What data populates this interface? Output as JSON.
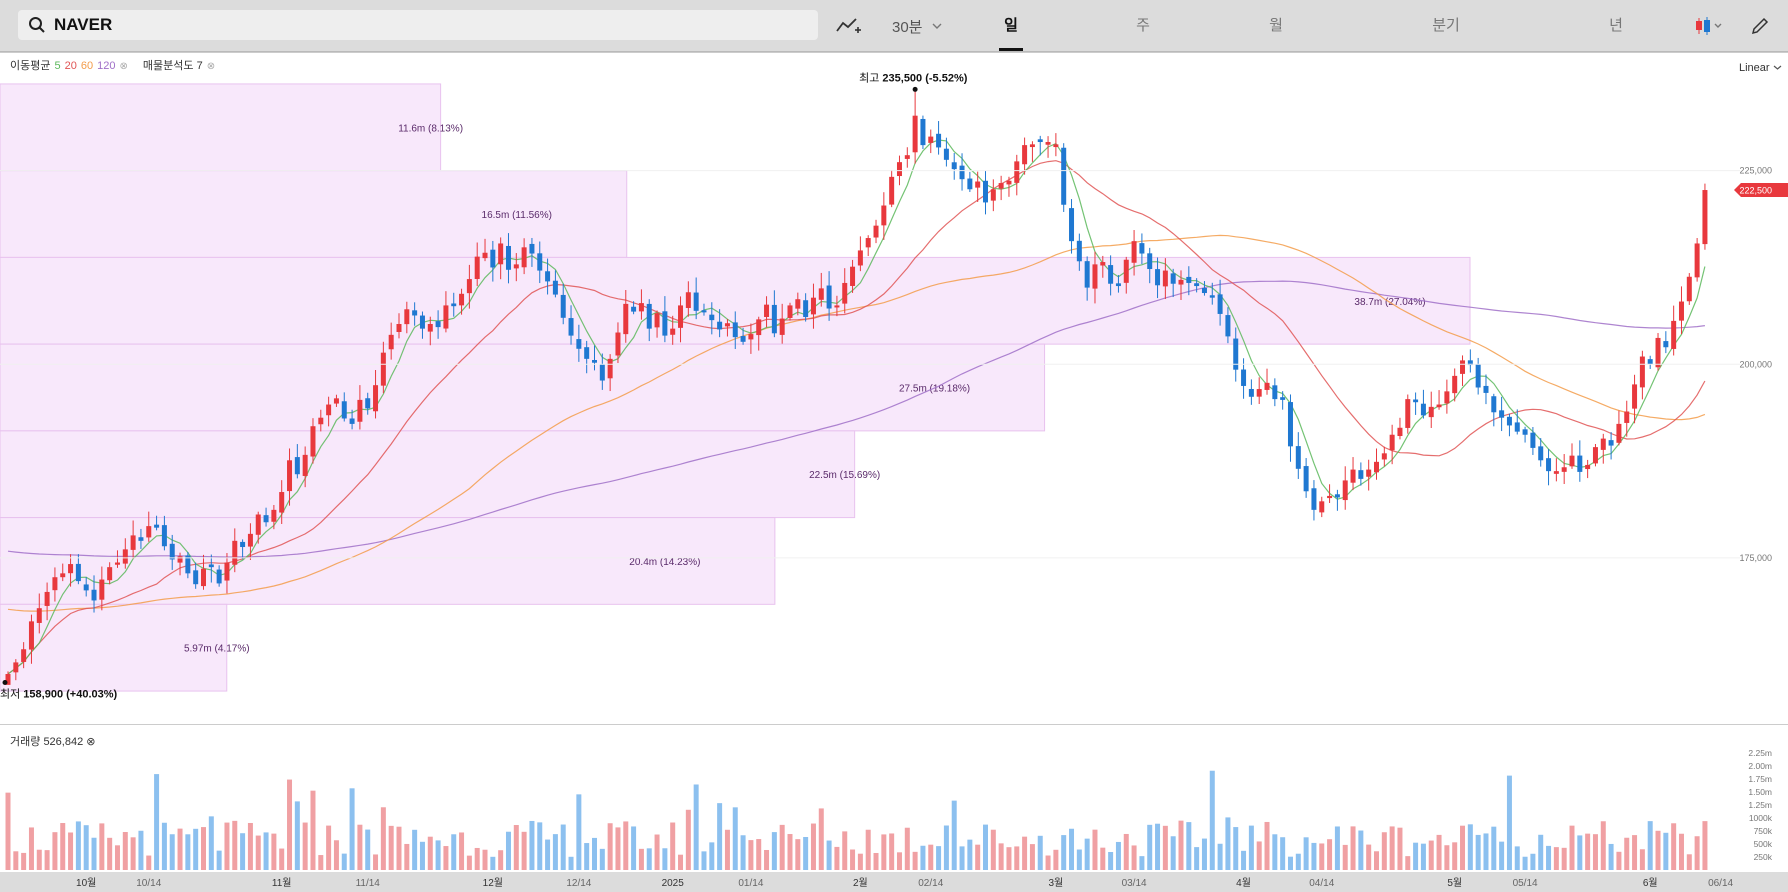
{
  "header": {
    "symbol": "NAVER",
    "interval_label": "30분",
    "periods": [
      "일",
      "주",
      "월",
      "분기",
      "년"
    ],
    "active_period": "일"
  },
  "indicators": {
    "ma_label": "이동평균",
    "ma_periods": [
      "5",
      "20",
      "60",
      "120"
    ],
    "ma_colors": [
      "#5cb85c",
      "#e05555",
      "#f39c4a",
      "#a070c8"
    ],
    "volume_profile_label": "매물분석도 7",
    "volume_label": "거래량",
    "volume_value": "526,842"
  },
  "scale_mode": "Linear",
  "colors": {
    "up": "#e8383d",
    "down": "#1f78d1",
    "up_volume": "#f0a0a3",
    "down_volume": "#8cc0ef",
    "profile_fill": "#f8e8fb",
    "profile_stroke": "#e8c2ee",
    "last_price_bg": "#e8383d"
  },
  "chart_data": {
    "type": "candlestick",
    "title": "NAVER",
    "ylim": [
      156000,
      238000
    ],
    "price_ticks": [
      "225,000",
      "200,000",
      "175,000"
    ],
    "price_tick_values": [
      225000,
      200000,
      175000
    ],
    "last_price": "222,500",
    "last_price_value": 222500,
    "max_annotation": {
      "prefix": "최고",
      "value": "235,500 (-5.52%)",
      "price": 235500,
      "day": 116
    },
    "min_annotation": {
      "prefix": "최저",
      "value": "158,900 (+40.03%)",
      "price": 158900,
      "day": 0
    },
    "x_tick_labels": [
      "10월",
      "10/14",
      "11월",
      "11/14",
      "12월",
      "12/14",
      "2025",
      "01/14",
      "2월",
      "02/14",
      "3월",
      "03/14",
      "4월",
      "04/14",
      "5월",
      "05/14",
      "6월",
      "06/14"
    ],
    "x_tick_days": [
      10,
      18,
      35,
      46,
      62,
      73,
      85,
      95,
      109,
      118,
      134,
      144,
      158,
      168,
      185,
      194,
      210,
      219
    ],
    "volume_ticks": [
      "2.25m",
      "2.00m",
      "1.75m",
      "1.50m",
      "1.25m",
      "1000k",
      "750k",
      "500k",
      "250k"
    ],
    "volume_tick_values": [
      2250000,
      2000000,
      1750000,
      1500000,
      1250000,
      1000000,
      750000,
      500000,
      250000
    ],
    "volume_ylim": [
      0,
      2400000
    ],
    "volume_profile": [
      {
        "label": "11.6m (8.13%)",
        "price_low": 225000,
        "price_high": 236200,
        "volume": 11.6
      },
      {
        "label": "16.5m (11.56%)",
        "price_low": 213800,
        "price_high": 225000,
        "volume": 16.5
      },
      {
        "label": "38.7m (27.04%)",
        "price_low": 202600,
        "price_high": 213800,
        "volume": 38.7
      },
      {
        "label": "27.5m (19.18%)",
        "price_low": 191400,
        "price_high": 202600,
        "volume": 27.5
      },
      {
        "label": "22.5m (15.69%)",
        "price_low": 180200,
        "price_high": 191400,
        "volume": 22.5
      },
      {
        "label": "20.4m (14.23%)",
        "price_low": 169000,
        "price_high": 180200,
        "volume": 20.4
      },
      {
        "label": "5.97m (4.17%)",
        "price_low": 157800,
        "price_high": 169000,
        "volume": 5.97
      }
    ],
    "closes": [
      160000,
      161500,
      163200,
      166800,
      168500,
      170600,
      172500,
      173000,
      174200,
      172000,
      170800,
      169500,
      172200,
      173800,
      174400,
      176100,
      177900,
      177200,
      179100,
      178900,
      176500,
      174800,
      175200,
      173000,
      171600,
      173600,
      173800,
      171700,
      174400,
      177200,
      176400,
      178100,
      180600,
      179600,
      181200,
      183500,
      187600,
      185800,
      188300,
      192000,
      193100,
      194800,
      195600,
      193000,
      192300,
      195400,
      194300,
      197300,
      201500,
      203800,
      205200,
      207100,
      206300,
      204600,
      205200,
      204800,
      207600,
      207500,
      209100,
      211000,
      213900,
      214400,
      212500,
      215600,
      212200,
      212900,
      215100,
      214300,
      212100,
      210700,
      209000,
      206000,
      203700,
      202000,
      200700,
      200200,
      197900,
      200700,
      204100,
      207800,
      206800,
      207900,
      204600,
      206600,
      203700,
      204600,
      207600,
      209300,
      206900,
      206700,
      205700,
      204500,
      205300,
      203500,
      202900,
      203900,
      205800,
      207700,
      204000,
      205900,
      207600,
      208400,
      206100,
      208600,
      209800,
      207200,
      207600,
      210500,
      212600,
      214700,
      216300,
      217900,
      220500,
      224200,
      226100,
      227000,
      232100,
      228300,
      229400,
      228000,
      226400,
      225200,
      223900,
      222600,
      223600,
      220900,
      222600,
      223400,
      223700,
      226200,
      228300,
      228400,
      228700,
      228700,
      228400,
      220600,
      215900,
      213300,
      209900,
      212900,
      213200,
      210400,
      210100,
      213500,
      215900,
      214300,
      212300,
      210200,
      212100,
      210400,
      210900,
      210500,
      210100,
      209200,
      208600,
      206500,
      203600,
      199300,
      197200,
      195800,
      196800,
      197600,
      195500,
      195400,
      189400,
      186500,
      183600,
      181200,
      182300,
      183000,
      182800,
      185000,
      186400,
      185200,
      186400,
      187400,
      188500,
      190900,
      191800,
      195500,
      195100,
      193400,
      194500,
      194800,
      196500,
      198500,
      200500,
      199900,
      197000,
      196300,
      193800,
      193100,
      192100,
      191300,
      190900,
      189200,
      187600,
      186200,
      186200,
      186700,
      188200,
      186100,
      187000,
      189300,
      190400,
      189500,
      192300,
      193900,
      197400,
      201000,
      200000,
      203400,
      202200,
      205600,
      208100,
      211300,
      215600,
      222500
    ]
  }
}
